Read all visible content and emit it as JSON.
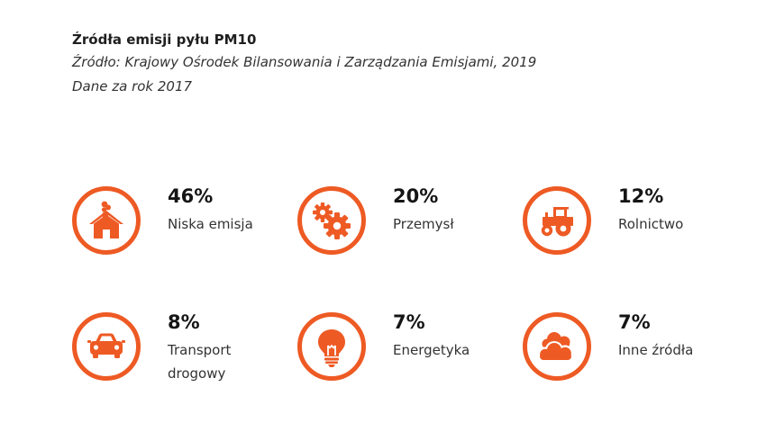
{
  "header": {
    "title": "Źródła emisji pyłu PM10",
    "source": "Źródło: Krajowy Ośrodek Bilansowania i Zarządzania Emisjami, 2019",
    "year_note": "Dane za rok 2017"
  },
  "accent_color": "#ee5a24",
  "items": [
    {
      "value": "46%",
      "label": "Niska emisja",
      "icon": "house-chimney-icon"
    },
    {
      "value": "20%",
      "label": "Przemysł",
      "icon": "gears-icon"
    },
    {
      "value": "12%",
      "label": "Rolnictwo",
      "icon": "tractor-icon"
    },
    {
      "value": "8%",
      "label": "Transport drogowy",
      "icon": "car-icon"
    },
    {
      "value": "7%",
      "label": "Energetyka",
      "icon": "lightbulb-icon"
    },
    {
      "value": "7%",
      "label": "Inne źródła",
      "icon": "cloud-icon"
    }
  ]
}
